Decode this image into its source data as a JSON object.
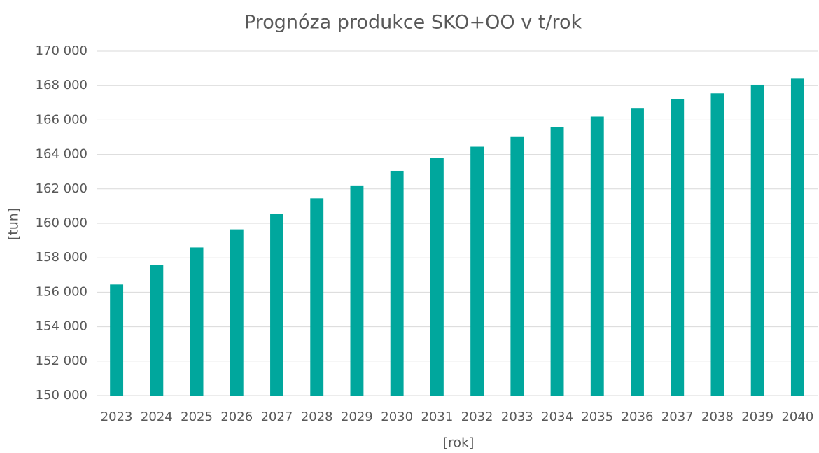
{
  "chart_data": {
    "type": "bar",
    "title": "Prognóza produkce SKO+OO v t/rok",
    "x_label": "[rok]",
    "y_label": "[tun]",
    "categories": [
      "2023",
      "2024",
      "2025",
      "2026",
      "2027",
      "2028",
      "2029",
      "2030",
      "2031",
      "2032",
      "2033",
      "2034",
      "2035",
      "2036",
      "2037",
      "2038",
      "2039",
      "2040"
    ],
    "values": [
      156450,
      157600,
      158600,
      159650,
      160550,
      161450,
      162200,
      163050,
      163800,
      164450,
      165050,
      165600,
      166200,
      166700,
      167200,
      167550,
      168050,
      168400
    ],
    "color": "#00a79d",
    "ylim": [
      150000,
      170000
    ],
    "yticks": [
      {
        "value": 150000,
        "label": "150 000"
      },
      {
        "value": 152000,
        "label": "152 000"
      },
      {
        "value": 154000,
        "label": "154 000"
      },
      {
        "value": 156000,
        "label": "156 000"
      },
      {
        "value": 158000,
        "label": "158 000"
      },
      {
        "value": 160000,
        "label": "160 000"
      },
      {
        "value": 162000,
        "label": "162 000"
      },
      {
        "value": 164000,
        "label": "164 000"
      },
      {
        "value": 166000,
        "label": "166 000"
      },
      {
        "value": 168000,
        "label": "168 000"
      },
      {
        "value": 170000,
        "label": "170 000"
      }
    ],
    "grid": true
  }
}
